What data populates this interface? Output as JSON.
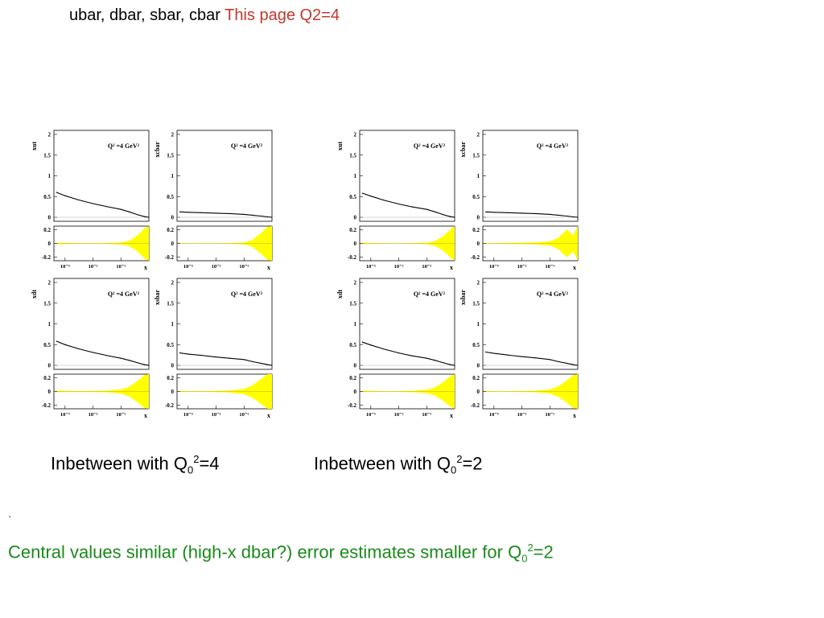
{
  "header": {
    "title_black": "ubar, dbar, sbar, cbar",
    "title_red": "This page Q2=4"
  },
  "captions": [
    {
      "pre": "Inbetween with Q",
      "sub": "0",
      "sup": "2",
      "post": "=4"
    },
    {
      "pre": "Inbetween with  Q",
      "sub": "0",
      "sup": "2",
      "post": "=2"
    }
  ],
  "bullet": ".",
  "conclusion": {
    "pre": "Central values similar (high-x dbar?) error estimates smaller for Q",
    "sub": "0",
    "sup": "2",
    "post": "=2"
  },
  "colors": {
    "band": "#ffff00",
    "curve": "#000000",
    "red_title": "#c0392b",
    "green_text": "#1a8a1a"
  },
  "chart_data": [
    {
      "type": "line",
      "group": "Q0^2=4",
      "ylabel": "xut",
      "annotation": "Q² =4 GeV²",
      "ylim": [
        0,
        2
      ],
      "yticks": [
        "2",
        "1.5",
        "1",
        "0.5",
        "0"
      ],
      "x": [
        0.0005,
        0.001,
        0.003,
        0.01,
        0.03,
        0.1,
        0.2,
        0.4,
        0.7,
        1
      ],
      "y": [
        0.6,
        0.52,
        0.42,
        0.33,
        0.26,
        0.19,
        0.13,
        0.06,
        0.015,
        0
      ],
      "ratio": {
        "ylim": [
          -0.25,
          0.25
        ],
        "yticks": [
          "0.2",
          "0",
          "-0.2"
        ],
        "band": [
          0.012,
          0.008,
          0.006,
          0.005,
          0.007,
          0.015,
          0.04,
          0.12,
          0.22,
          0.25
        ]
      },
      "xticks": [
        "10⁻³",
        "10⁻²",
        "10⁻¹"
      ],
      "xlabel": "x"
    },
    {
      "type": "line",
      "group": "Q0^2=4",
      "ylabel": "xcbar",
      "annotation": "Q² =4 GeV²",
      "ylim": [
        0,
        2
      ],
      "yticks": [
        "2",
        "1.5",
        "1",
        "0.5",
        "0"
      ],
      "x": [
        0.0005,
        0.001,
        0.003,
        0.01,
        0.03,
        0.1,
        0.2,
        0.4,
        0.7,
        1
      ],
      "y": [
        0.13,
        0.12,
        0.11,
        0.1,
        0.09,
        0.07,
        0.05,
        0.03,
        0.01,
        0
      ],
      "ratio": {
        "ylim": [
          -0.25,
          0.25
        ],
        "yticks": [
          "0.2",
          "0",
          "-0.2"
        ],
        "band": [
          0.005,
          0.004,
          0.004,
          0.004,
          0.006,
          0.015,
          0.05,
          0.15,
          0.24,
          0.25
        ]
      },
      "xticks": [
        "10⁻³",
        "10⁻²",
        "10⁻¹"
      ],
      "xlabel": "x"
    },
    {
      "type": "line",
      "group": "Q0^2=2",
      "ylabel": "xut",
      "annotation": "Q² =4 GeV²",
      "ylim": [
        0,
        2
      ],
      "yticks": [
        "2",
        "1.5",
        "1",
        "0.5",
        "0"
      ],
      "x": [
        0.0005,
        0.001,
        0.003,
        0.01,
        0.03,
        0.1,
        0.2,
        0.4,
        0.7,
        1
      ],
      "y": [
        0.58,
        0.51,
        0.41,
        0.32,
        0.25,
        0.19,
        0.13,
        0.06,
        0.015,
        0
      ],
      "ratio": {
        "ylim": [
          -0.25,
          0.25
        ],
        "yticks": [
          "0.2",
          "0",
          "-0.2"
        ],
        "band": [
          0.01,
          0.007,
          0.005,
          0.004,
          0.006,
          0.012,
          0.035,
          0.11,
          0.2,
          0.25
        ]
      },
      "xticks": [
        "10⁻³",
        "10⁻²",
        "10⁻¹"
      ],
      "xlabel": "x"
    },
    {
      "type": "line",
      "group": "Q0^2=2",
      "ylabel": "xcbar",
      "annotation": "Q² =4 GeV²",
      "ylim": [
        0,
        2
      ],
      "yticks": [
        "2",
        "1.5",
        "1",
        "0.5",
        "0"
      ],
      "x": [
        0.0005,
        0.001,
        0.003,
        0.01,
        0.03,
        0.1,
        0.2,
        0.4,
        0.7,
        1
      ],
      "y": [
        0.13,
        0.12,
        0.11,
        0.1,
        0.09,
        0.07,
        0.05,
        0.03,
        0.01,
        0
      ],
      "ratio": {
        "ylim": [
          -0.25,
          0.25
        ],
        "yticks": [
          "0.2",
          "0",
          "-0.2"
        ],
        "band": [
          0.006,
          0.005,
          0.008,
          0.01,
          0.015,
          0.03,
          0.08,
          0.2,
          0.12,
          0.25
        ]
      },
      "xticks": [
        "10⁻³",
        "10⁻²",
        "10⁻¹"
      ],
      "xlabel": "x"
    },
    {
      "type": "line",
      "group": "Q0^2=4",
      "ylabel": "xdt",
      "annotation": "Q² =4 GeV²",
      "ylim": [
        0,
        2
      ],
      "yticks": [
        "2",
        "1.5",
        "1",
        "0.5",
        "0"
      ],
      "x": [
        0.0005,
        0.001,
        0.003,
        0.01,
        0.03,
        0.1,
        0.2,
        0.4,
        0.7,
        1
      ],
      "y": [
        0.58,
        0.5,
        0.4,
        0.31,
        0.24,
        0.17,
        0.12,
        0.06,
        0.015,
        0
      ],
      "ratio": {
        "ylim": [
          -0.25,
          0.25
        ],
        "yticks": [
          "0.2",
          "0",
          "-0.2"
        ],
        "band": [
          0.012,
          0.008,
          0.007,
          0.008,
          0.012,
          0.03,
          0.07,
          0.16,
          0.24,
          0.25
        ]
      },
      "xticks": [
        "10⁻³",
        "10⁻²",
        "10⁻¹"
      ],
      "xlabel": "x"
    },
    {
      "type": "line",
      "group": "Q0^2=4",
      "ylabel": "xsbar",
      "annotation": "Q² =4 GeV²",
      "ylim": [
        0,
        2
      ],
      "yticks": [
        "2",
        "1.5",
        "1",
        "0.5",
        "0"
      ],
      "x": [
        0.0005,
        0.001,
        0.003,
        0.01,
        0.03,
        0.1,
        0.2,
        0.4,
        0.7,
        1
      ],
      "y": [
        0.3,
        0.27,
        0.24,
        0.2,
        0.17,
        0.14,
        0.09,
        0.05,
        0.015,
        0
      ],
      "ratio": {
        "ylim": [
          -0.25,
          0.25
        ],
        "yticks": [
          "0.2",
          "0",
          "-0.2"
        ],
        "band": [
          0.008,
          0.006,
          0.006,
          0.008,
          0.015,
          0.04,
          0.09,
          0.18,
          0.25,
          0.25
        ]
      },
      "xticks": [
        "10⁻³",
        "10⁻²",
        "10⁻¹"
      ],
      "xlabel": "x"
    },
    {
      "type": "line",
      "group": "Q0^2=2",
      "ylabel": "xdt",
      "annotation": "Q² =4 GeV²",
      "ylim": [
        0,
        2
      ],
      "yticks": [
        "2",
        "1.5",
        "1",
        "0.5",
        "0"
      ],
      "x": [
        0.0005,
        0.001,
        0.003,
        0.01,
        0.03,
        0.1,
        0.2,
        0.4,
        0.7,
        1
      ],
      "y": [
        0.56,
        0.49,
        0.39,
        0.3,
        0.23,
        0.17,
        0.12,
        0.06,
        0.015,
        0
      ],
      "ratio": {
        "ylim": [
          -0.25,
          0.25
        ],
        "yticks": [
          "0.2",
          "0",
          "-0.2"
        ],
        "band": [
          0.01,
          0.007,
          0.005,
          0.006,
          0.01,
          0.025,
          0.06,
          0.14,
          0.22,
          0.25
        ]
      },
      "xticks": [
        "10⁻³",
        "10⁻²",
        "10⁻¹"
      ],
      "xlabel": "x"
    },
    {
      "type": "line",
      "group": "Q0^2=2",
      "ylabel": "xsbar",
      "annotation": "Q² =4 GeV²",
      "ylim": [
        0,
        2
      ],
      "yticks": [
        "2",
        "1.5",
        "1",
        "0.5",
        "0"
      ],
      "x": [
        0.0005,
        0.001,
        0.003,
        0.01,
        0.03,
        0.1,
        0.2,
        0.4,
        0.7,
        1
      ],
      "y": [
        0.32,
        0.29,
        0.25,
        0.21,
        0.18,
        0.14,
        0.09,
        0.05,
        0.015,
        0
      ],
      "ratio": {
        "ylim": [
          -0.25,
          0.25
        ],
        "yticks": [
          "0.2",
          "0",
          "-0.2"
        ],
        "band": [
          0.007,
          0.005,
          0.005,
          0.007,
          0.012,
          0.03,
          0.075,
          0.16,
          0.24,
          0.25
        ]
      },
      "xticks": [
        "10⁻³",
        "10⁻²",
        "10⁻¹"
      ],
      "xlabel": "x"
    }
  ]
}
